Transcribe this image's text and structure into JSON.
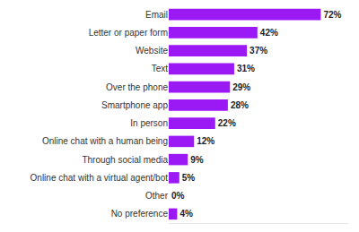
{
  "chart_data": {
    "type": "bar",
    "orientation": "horizontal",
    "categories": [
      "Email",
      "Letter or paper form",
      "Website",
      "Text",
      "Over the phone",
      "Smartphone app",
      "In person",
      "Online chat with a human being",
      "Through social media",
      "Online chat with a virtual agent/bot",
      "Other",
      "No preference"
    ],
    "values": [
      72,
      42,
      37,
      31,
      29,
      28,
      22,
      12,
      9,
      5,
      0,
      4
    ],
    "value_labels": [
      "72%",
      "42%",
      "37%",
      "31%",
      "29%",
      "28%",
      "22%",
      "12%",
      "9%",
      "5%",
      "0%",
      "4%"
    ],
    "color": "#9b19f5",
    "xlim": [
      0,
      85
    ],
    "data_labels": true,
    "tick_labels": "y",
    "grid": false
  }
}
